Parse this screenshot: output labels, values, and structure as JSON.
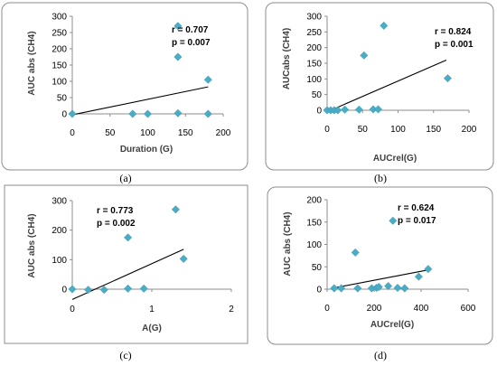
{
  "chart_data": [
    {
      "type": "scatter",
      "caption": "(a)",
      "xlabel": "Duration (G)",
      "ylabel": "AUC abs (CH4)",
      "xlim": [
        0,
        200
      ],
      "ylim": [
        0,
        300
      ],
      "xticks": [
        "0",
        "50",
        "100",
        "150",
        "200"
      ],
      "yticks": [
        "0",
        "50",
        "100",
        "150",
        "200",
        "250",
        "300"
      ],
      "stat_r": "r = 0.707",
      "stat_p": "p = 0.007",
      "points": [
        [
          0,
          0
        ],
        [
          80,
          0
        ],
        [
          100,
          0
        ],
        [
          140,
          270
        ],
        [
          140,
          175
        ],
        [
          140,
          2
        ],
        [
          180,
          105
        ],
        [
          180,
          0
        ]
      ],
      "trendline": [
        [
          0,
          -3
        ],
        [
          180,
          83
        ]
      ],
      "marker_color": "#4bacc6",
      "line_color": "#000000",
      "frame": "rounded"
    },
    {
      "type": "scatter",
      "caption": "(b)",
      "xlabel": "AUCrel(G)",
      "ylabel": "AUCabs (CH4)",
      "xlim": [
        0,
        200
      ],
      "ylim": [
        0,
        300
      ],
      "xticks": [
        "0",
        "50",
        "100",
        "150",
        "200"
      ],
      "yticks": [
        "0",
        "50",
        "100",
        "150",
        "200",
        "250",
        "300"
      ],
      "stat_r": "r = 0.824",
      "stat_p": "p = 0.001",
      "points": [
        [
          0,
          0
        ],
        [
          5,
          0
        ],
        [
          10,
          0
        ],
        [
          15,
          0
        ],
        [
          25,
          2
        ],
        [
          45,
          2
        ],
        [
          52,
          175
        ],
        [
          65,
          3
        ],
        [
          72,
          3
        ],
        [
          80,
          270
        ],
        [
          170,
          102
        ]
      ],
      "trendline": [
        [
          0,
          -5
        ],
        [
          168,
          160
        ]
      ],
      "marker_color": "#4bacc6",
      "line_color": "#000000",
      "frame": "rounded"
    },
    {
      "type": "scatter",
      "caption": "(c)",
      "xlabel": "A(G)",
      "ylabel": "AUC abs (CH4)",
      "xlim": [
        0,
        2
      ],
      "ylim": [
        0,
        300
      ],
      "xticks": [
        "0",
        "1",
        "2"
      ],
      "yticks": [
        "0",
        "100",
        "200",
        "300"
      ],
      "stat_r": "r = 0.773",
      "stat_p": "p = 0.002",
      "points": [
        [
          0,
          0
        ],
        [
          0.2,
          -2
        ],
        [
          0.4,
          -2
        ],
        [
          0.7,
          175
        ],
        [
          0.7,
          2
        ],
        [
          0.9,
          2
        ],
        [
          1.3,
          270
        ],
        [
          1.4,
          103
        ]
      ],
      "trendline": [
        [
          0,
          -35
        ],
        [
          1.4,
          135
        ]
      ],
      "marker_color": "#4bacc6",
      "line_color": "#000000",
      "frame": "square"
    },
    {
      "type": "scatter",
      "caption": "(d)",
      "xlabel": "AUCrel(G)",
      "ylabel": "AUC abs (CH4)",
      "xlim": [
        0,
        600
      ],
      "ylim": [
        0,
        200
      ],
      "xticks": [
        "0",
        "200",
        "400",
        "600"
      ],
      "yticks": [
        "0",
        "50",
        "100",
        "150",
        "200"
      ],
      "stat_r": "r = 0.624",
      "stat_p": "p = 0.017",
      "points": [
        [
          30,
          2
        ],
        [
          60,
          2
        ],
        [
          120,
          82
        ],
        [
          130,
          2
        ],
        [
          190,
          2
        ],
        [
          210,
          3
        ],
        [
          220,
          5
        ],
        [
          260,
          7
        ],
        [
          280,
          153
        ],
        [
          300,
          3
        ],
        [
          330,
          2
        ],
        [
          390,
          28
        ],
        [
          430,
          45
        ]
      ],
      "trendline": [
        [
          30,
          3
        ],
        [
          430,
          43
        ]
      ],
      "marker_color": "#4bacc6",
      "line_color": "#000000",
      "frame": "rounded"
    }
  ]
}
